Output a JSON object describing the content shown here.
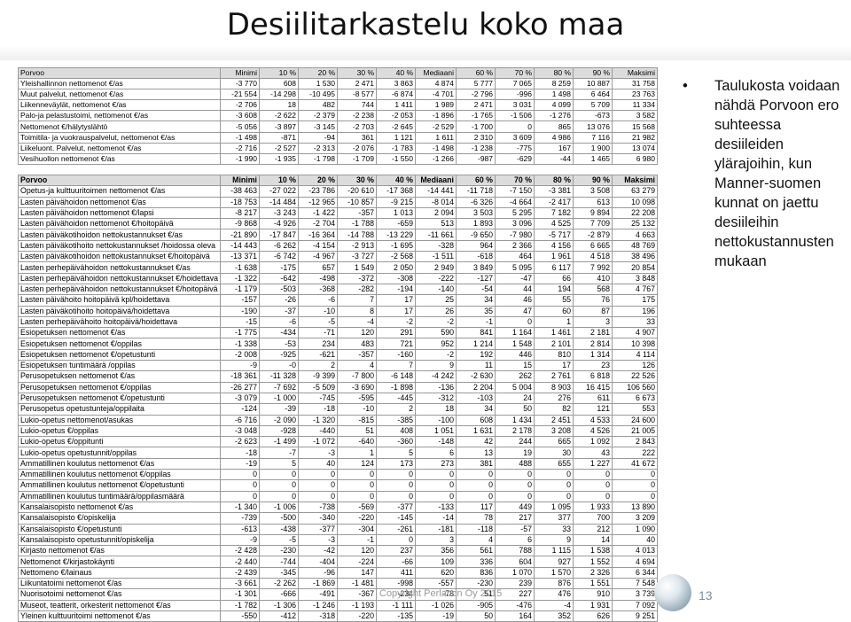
{
  "title": "Desiilitarkastelu koko maa",
  "table1": {
    "header": [
      "Porvoo",
      "Minimi",
      "10 %",
      "20 %",
      "30 %",
      "40 %",
      "Mediaani",
      "60 %",
      "70 %",
      "80 %",
      "90 %",
      "Maksimi"
    ],
    "rows": [
      [
        "Yleishallinnon nettomenot €/as",
        "-3 770",
        "608",
        "1 530",
        "2 471",
        "3 863",
        "4 874",
        "5 777",
        "7 065",
        "8 259",
        "10 887",
        "31 758"
      ],
      [
        "Muut palvelut, nettomenot €/as",
        "-21 554",
        "-14 298",
        "-10 495",
        "-8 577",
        "-6 874",
        "-4 701",
        "-2 796",
        "-996",
        "1 498",
        "6 464",
        "23 763"
      ],
      [
        "Liikenneväylät, nettomenot €/as",
        "-2 706",
        "18",
        "482",
        "744",
        "1 411",
        "1 989",
        "2 471",
        "3 031",
        "4 099",
        "5 709",
        "11 334"
      ],
      [
        "Palo-ja pelastustoimi, nettomenot €/as",
        "-3 608",
        "-2 622",
        "-2 379",
        "-2 238",
        "-2 053",
        "-1 896",
        "-1 765",
        "-1 506",
        "-1 276",
        "-673",
        "3 582"
      ],
      [
        "Nettomenot €/hälytyslähtö",
        "-5 056",
        "-3 897",
        "-3 145",
        "-2 703",
        "-2 645",
        "-2 529",
        "-1 700",
        "0",
        "865",
        "13 076",
        "15 568"
      ],
      [
        "Toimitila- ja vuokrauspalvelut, nettomenot €/as",
        "-1 498",
        "-871",
        "-94",
        "361",
        "1 121",
        "1 611",
        "2 310",
        "3 609",
        "4 986",
        "7 116",
        "21 982"
      ],
      [
        "Liikeluont. Palvelut, nettomenot €/as",
        "-2 716",
        "-2 527",
        "-2 313",
        "-2 076",
        "-1 783",
        "-1 498",
        "-1 238",
        "-775",
        "167",
        "1 900",
        "13 074"
      ],
      [
        "Vesihuollon nettomenot €/as",
        "-1 990",
        "-1 935",
        "-1 798",
        "-1 709",
        "-1 550",
        "-1 266",
        "-987",
        "-629",
        "-44",
        "1 465",
        "6 980"
      ]
    ]
  },
  "table2": {
    "header": [
      "Porvoo",
      "Minimi",
      "10 %",
      "20 %",
      "30 %",
      "40 %",
      "Mediaani",
      "60 %",
      "70 %",
      "80 %",
      "90 %",
      "Maksimi"
    ],
    "rows": [
      [
        "Opetus-ja kulttuuritoimen nettomenot €/as",
        "-38 463",
        "-27 022",
        "-23 786",
        "-20 610",
        "-17 368",
        "-14 441",
        "-11 718",
        "-7 150",
        "-3 381",
        "3 508",
        "63 279"
      ],
      [
        "Lasten päivähoidon nettomenot €/as",
        "-18 753",
        "-14 484",
        "-12 965",
        "-10 857",
        "-9 215",
        "-8 014",
        "-6 326",
        "-4 664",
        "-2 417",
        "613",
        "10 098"
      ],
      [
        "Lasten päivähoidon nettomenot €/lapsi",
        "-8 217",
        "-3 243",
        "-1 422",
        "-357",
        "1 013",
        "2 094",
        "3 503",
        "5 295",
        "7 182",
        "9 894",
        "22 208"
      ],
      [
        "Lasten päivähoidon nettomenot €/hoitopäivä",
        "-9 868",
        "-4 926",
        "-2 704",
        "-1 788",
        "-659",
        "513",
        "1 893",
        "3 096",
        "4 525",
        "7 709",
        "25 132"
      ],
      [
        "Lasten päiväkotihoidon nettokustannukset €/as",
        "-21 890",
        "-17 847",
        "-16 364",
        "-14 788",
        "-13 229",
        "-11 661",
        "-9 650",
        "-7 980",
        "-5 717",
        "-2 879",
        "4 663"
      ],
      [
        "Lasten päiväkotihoito nettokustannukset /hoidossa oleva",
        "-14 443",
        "-6 262",
        "-4 154",
        "-2 913",
        "-1 695",
        "-328",
        "964",
        "2 366",
        "4 156",
        "6 665",
        "48 769"
      ],
      [
        "Lasten päiväkotihoidon nettokustannukset €/hoitopäivä",
        "-13 371",
        "-6 742",
        "-4 967",
        "-3 727",
        "-2 568",
        "-1 511",
        "-618",
        "464",
        "1 961",
        "4 518",
        "38 496"
      ],
      [
        "Lasten perhepäivähoidon nettokustannukset €/as",
        "-1 638",
        "-175",
        "657",
        "1 549",
        "2 050",
        "2 949",
        "3 849",
        "5 095",
        "6 117",
        "7 992",
        "20 854"
      ],
      [
        "Lasten perhepäivähoidon nettokustannukset €/hoidettava",
        "-1 322",
        "-642",
        "-498",
        "-372",
        "-308",
        "-222",
        "-127",
        "-47",
        "66",
        "410",
        "3 848"
      ],
      [
        "Lasten perhepäivähoidon nettokustannukset €/hoitopäivä",
        "-1 179",
        "-503",
        "-368",
        "-282",
        "-194",
        "-140",
        "-54",
        "44",
        "194",
        "568",
        "4 767"
      ],
      [
        "Lasten päivähoito hoitopäivä kpl/hoidettava",
        "-157",
        "-26",
        "-6",
        "7",
        "17",
        "25",
        "34",
        "46",
        "55",
        "76",
        "175"
      ],
      [
        "Lasten päiväkotihoito hoitopäivä/hoidettava",
        "-190",
        "-37",
        "-10",
        "8",
        "17",
        "26",
        "35",
        "47",
        "60",
        "87",
        "196"
      ],
      [
        "Lasten perhepäivähoito hoitopäivä/hoidettava",
        "-15",
        "-6",
        "-5",
        "-4",
        "-2",
        "-2",
        "-1",
        "0",
        "1",
        "3",
        "33"
      ],
      [
        "Esiopetuksen nettomenot €/as",
        "-1 775",
        "-434",
        "-71",
        "120",
        "291",
        "590",
        "841",
        "1 164",
        "1 461",
        "2 181",
        "4 907"
      ],
      [
        "Esiopetuksen nettomenot €/oppilas",
        "-1 338",
        "-53",
        "234",
        "483",
        "721",
        "952",
        "1 214",
        "1 548",
        "2 101",
        "2 814",
        "10 398"
      ],
      [
        "Esiopetuksen nettomenot €/opetustunti",
        "-2 008",
        "-925",
        "-621",
        "-357",
        "-160",
        "-2",
        "192",
        "446",
        "810",
        "1 314",
        "4 114"
      ],
      [
        "Esiopetuksen tuntimäärä /oppilas",
        "-9",
        "-0",
        "2",
        "4",
        "7",
        "9",
        "11",
        "15",
        "17",
        "23",
        "126"
      ],
      [
        "Perusopetuksen nettomenot €/as",
        "-18 361",
        "-11 328",
        "-9 399",
        "-7 800",
        "-6 148",
        "-4 242",
        "-2 630",
        "262",
        "2 761",
        "6 818",
        "22 526"
      ],
      [
        "Perusopetuksen nettomenot €/oppilas",
        "-26 277",
        "-7 692",
        "-5 509",
        "-3 690",
        "-1 898",
        "-136",
        "2 204",
        "5 004",
        "8 903",
        "16 415",
        "106 560"
      ],
      [
        "Perusopetuksen nettomenot €/opetustunti",
        "-3 079",
        "-1 000",
        "-745",
        "-595",
        "-445",
        "-312",
        "-103",
        "24",
        "276",
        "611",
        "6 673"
      ],
      [
        "Perusopetus opetustunteja/oppilaita",
        "-124",
        "-39",
        "-18",
        "-10",
        "2",
        "18",
        "34",
        "50",
        "82",
        "121",
        "553"
      ],
      [
        "Lukio-opetus nettomenot/asukas",
        "-6 716",
        "-2 090",
        "-1 320",
        "-815",
        "-385",
        "-100",
        "608",
        "1 434",
        "2 451",
        "4 533",
        "24 600"
      ],
      [
        "Lukio-opetus €/oppilas",
        "-3 048",
        "-928",
        "-440",
        "51",
        "408",
        "1 051",
        "1 631",
        "2 178",
        "3 208",
        "4 526",
        "21 005"
      ],
      [
        "Lukio-opetus €/oppitunti",
        "-2 623",
        "-1 499",
        "-1 072",
        "-640",
        "-360",
        "-148",
        "42",
        "244",
        "665",
        "1 092",
        "2 843"
      ],
      [
        "Lukio-opetus opetustunnit/oppilas",
        "-18",
        "-7",
        "-3",
        "1",
        "5",
        "6",
        "13",
        "19",
        "30",
        "43",
        "222"
      ],
      [
        "Ammatillinen koulutus nettomenot €/as",
        "-19",
        "5",
        "40",
        "124",
        "173",
        "273",
        "381",
        "488",
        "655",
        "1 227",
        "41 672"
      ],
      [
        "Ammatillinen koulutus nettomenot €/oppilas",
        "0",
        "0",
        "0",
        "0",
        "0",
        "0",
        "0",
        "0",
        "0",
        "0",
        "0"
      ],
      [
        "Ammatillinen koulutus nettomenot €/opetustunti",
        "0",
        "0",
        "0",
        "0",
        "0",
        "0",
        "0",
        "0",
        "0",
        "0",
        "0"
      ],
      [
        "Ammatillinen koulutus tuntimäärä/oppilasmäärä",
        "0",
        "0",
        "0",
        "0",
        "0",
        "0",
        "0",
        "0",
        "0",
        "0",
        "0"
      ],
      [
        "Kansalaisopisto nettomenot €/as",
        "-1 340",
        "-1 006",
        "-738",
        "-569",
        "-377",
        "-133",
        "117",
        "449",
        "1 095",
        "1 933",
        "13 890"
      ],
      [
        "Kansalaisopisto €/opiskelija",
        "-739",
        "-500",
        "-340",
        "-220",
        "-145",
        "-14",
        "78",
        "217",
        "377",
        "700",
        "3 209"
      ],
      [
        "Kansalaisopisto €/opetustunti",
        "-613",
        "-438",
        "-377",
        "-304",
        "-261",
        "-181",
        "-118",
        "-57",
        "33",
        "212",
        "1 090"
      ],
      [
        "Kansalaisopisto opetustunnit/opiskelija",
        "-9",
        "-5",
        "-3",
        "-1",
        "0",
        "3",
        "4",
        "6",
        "9",
        "14",
        "40"
      ],
      [
        "Kirjasto nettomenot €/as",
        "-2 428",
        "-230",
        "-42",
        "120",
        "237",
        "356",
        "561",
        "788",
        "1 115",
        "1 538",
        "4 013"
      ],
      [
        "Nettomenot €/kirjastokäynti",
        "-2 440",
        "-744",
        "-404",
        "-224",
        "-66",
        "109",
        "336",
        "604",
        "927",
        "1 552",
        "4 694"
      ],
      [
        "Nettomeno €/lainaus",
        "-2 439",
        "-345",
        "-96",
        "147",
        "411",
        "620",
        "836",
        "1 070",
        "1 570",
        "2 326",
        "6 344"
      ],
      [
        "Liikuntatoimi nettomenot €/as",
        "-3 661",
        "-2 262",
        "-1 869",
        "-1 481",
        "-998",
        "-557",
        "-230",
        "239",
        "876",
        "1 551",
        "7 548"
      ],
      [
        "Nuorisotoimi nettomenot €/as",
        "-1 301",
        "-666",
        "-491",
        "-367",
        "-234",
        "-78",
        "51",
        "227",
        "476",
        "910",
        "3 739"
      ],
      [
        "Museot, teatterit, orkesterit nettomenot €/as",
        "-1 782",
        "-1 306",
        "-1 246",
        "-1 193",
        "-1 111",
        "-1 026",
        "-905",
        "-476",
        "-4",
        "1 931",
        "7 092"
      ],
      [
        "Yleinen kulttuuritoimi nettomenot €/as",
        "-550",
        "-412",
        "-318",
        "-220",
        "-135",
        "-19",
        "50",
        "164",
        "352",
        "626",
        "9 251"
      ]
    ]
  },
  "bullet": "Taulukosta voidaan nähdä Porvoon ero suhteessa desiileiden ylärajoihin, kun Manner-suomen kunnat on jaettu desiileihin nettokustannusten mukaan",
  "bullet_char": "•",
  "footer": "Copyright Perlacon Oy 2015",
  "page_number": "13"
}
